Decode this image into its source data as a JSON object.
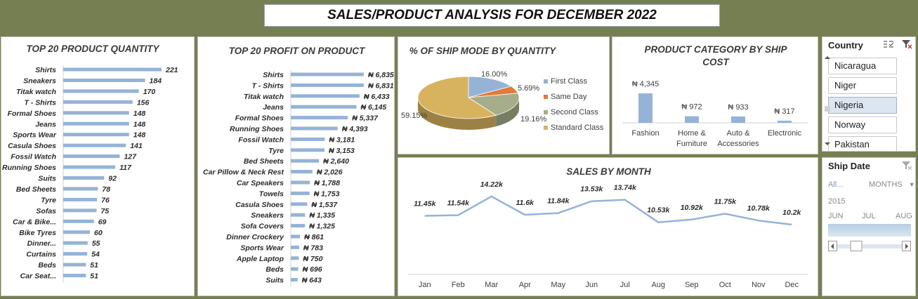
{
  "header": {
    "title": "SALES/PRODUCT ANALYSIS FOR DECEMBER 2022"
  },
  "panels": {
    "qty_title": "TOP 20 PRODUCT QUANTITY",
    "profit_title": "TOP 20 PROFIT ON PRODUCT",
    "ship_title": "% OF SHIP MODE BY QUANTITY",
    "cat_title_1": "PRODUCT CATEGORY BY SHIP",
    "cat_title_2": "COST",
    "month_title": "SALES BY MONTH"
  },
  "country_slicer": {
    "title": "Country",
    "items": [
      "Nicaragua",
      "Niger",
      "Nigeria",
      "Norway",
      "Pakistan"
    ],
    "selected": "Nigeria"
  },
  "date_slicer": {
    "title": "Ship Date",
    "all_label": "All...",
    "level_label": "MONTHS",
    "year": "2015",
    "months": [
      "JUN",
      "JUL",
      "AUG"
    ]
  },
  "chart_data": [
    {
      "id": "qty",
      "type": "bar",
      "orientation": "horizontal",
      "title": "TOP 20 PRODUCT QUANTITY",
      "categories": [
        "Shirts",
        "Sneakers",
        "Titak watch",
        "T - Shirts",
        "Formal Shoes",
        "Jeans",
        "Sports Wear",
        "Casula Shoes",
        "Fossil Watch",
        "Running Shoes",
        "Suits",
        "Bed Sheets",
        "Tyre",
        "Sofas",
        "Car & Bike...",
        "Bike Tyres",
        "Dinner...",
        "Curtains",
        "Beds",
        "Car Seat..."
      ],
      "values": [
        221,
        184,
        170,
        156,
        148,
        148,
        148,
        141,
        127,
        117,
        92,
        78,
        76,
        75,
        69,
        60,
        55,
        54,
        51,
        51
      ],
      "labels": [
        "221",
        "184",
        "170",
        "156",
        "148",
        "148",
        "148",
        "141",
        "127",
        "117",
        "92",
        "78",
        "76",
        "75",
        "69",
        "60",
        "55",
        "54",
        "51",
        "51"
      ],
      "color": "#95b3d7"
    },
    {
      "id": "profit",
      "type": "bar",
      "orientation": "horizontal",
      "title": "TOP 20 PROFIT ON PRODUCT",
      "categories": [
        "Shirts",
        "T - Shirts",
        "Titak watch",
        "Jeans",
        "Formal Shoes",
        "Running Shoes",
        "Fossil Watch",
        "Tyre",
        "Bed Sheets",
        "Car Pillow & Neck Rest",
        "Car Speakers",
        "Towels",
        "Casula Shoes",
        "Sneakers",
        "Sofa Covers",
        "Dinner Crockery",
        "Sports Wear",
        "Apple Laptop",
        "Beds",
        "Suits"
      ],
      "values": [
        6835,
        6831,
        6433,
        6145,
        5337,
        4393,
        3181,
        3153,
        2640,
        2026,
        1788,
        1753,
        1537,
        1335,
        1325,
        861,
        783,
        750,
        696,
        643
      ],
      "labels": [
        "₦ 6,835",
        "₦ 6,831",
        "₦ 6,433",
        "₦ 6,145",
        "₦ 5,337",
        "₦ 4,393",
        "₦ 3,181",
        "₦ 3,153",
        "₦ 2,640",
        "₦ 2,026",
        "₦ 1,788",
        "₦ 1,753",
        "₦ 1,537",
        "₦ 1,335",
        "₦ 1,325",
        "₦ 861",
        "₦ 783",
        "₦ 750",
        "₦ 696",
        "₦ 643"
      ],
      "color": "#95b3d7"
    },
    {
      "id": "ship",
      "type": "pie",
      "title": "% OF SHIP MODE BY QUANTITY",
      "categories": [
        "First Class",
        "Same Day",
        "Second Class",
        "Standard Class"
      ],
      "values": [
        16.0,
        5.69,
        19.16,
        59.15
      ],
      "labels": [
        "16.00%",
        "5.69%",
        "19.16%",
        "59.15%"
      ],
      "colors": [
        "#95b3d7",
        "#e07b39",
        "#a5ad8a",
        "#d8b35f"
      ],
      "legend": "right"
    },
    {
      "id": "category",
      "type": "bar",
      "orientation": "vertical",
      "title": "PRODUCT CATEGORY BY SHIP COST",
      "categories": [
        "Fashion",
        "Home & Furniture",
        "Auto & Accessories",
        "Electronic"
      ],
      "category_lines": [
        [
          "Fashion"
        ],
        [
          "Home &",
          "Furniture"
        ],
        [
          "Auto &",
          "Accessories"
        ],
        [
          "Electronic"
        ]
      ],
      "values": [
        4345,
        972,
        933,
        317
      ],
      "labels": [
        "₦ 4,345",
        "₦ 972",
        "₦ 933",
        "₦ 317"
      ],
      "color": "#95b3d7"
    },
    {
      "id": "month",
      "type": "line",
      "title": "SALES BY MONTH",
      "categories": [
        "Jan",
        "Feb",
        "Mar",
        "Apr",
        "May",
        "Jun",
        "Jul",
        "Aug",
        "Sep",
        "Oct",
        "Nov",
        "Dec"
      ],
      "values": [
        11.45,
        11.54,
        14.22,
        11.6,
        11.84,
        13.53,
        13.74,
        10.53,
        10.92,
        11.75,
        10.78,
        10.2
      ],
      "labels": [
        "11.45k",
        "11.54k",
        "14.22k",
        "11.6k",
        "11.84k",
        "13.53k",
        "13.74k",
        "10.53k",
        "10.92k",
        "11.75k",
        "10.78k",
        "10.2k"
      ],
      "units": "thousands",
      "color": "#95b3d7"
    }
  ]
}
